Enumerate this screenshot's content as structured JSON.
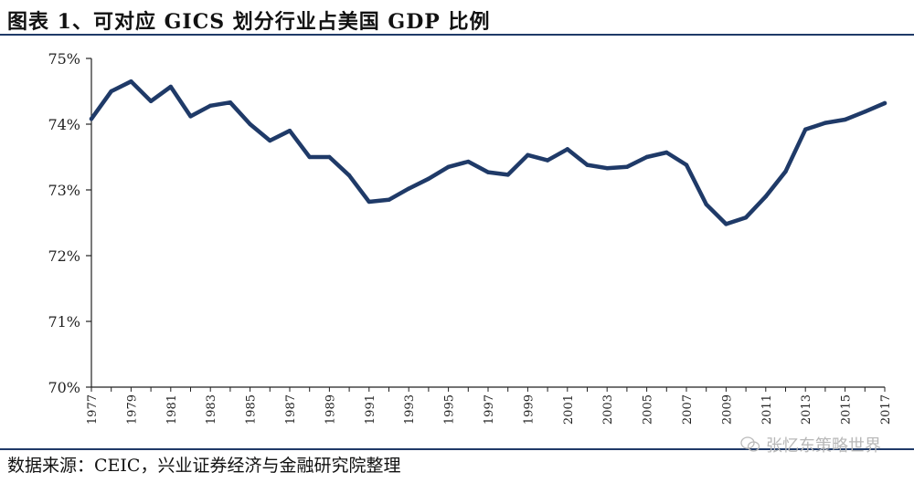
{
  "title": "图表 1、可对应 GICS 划分行业占美国 GDP 比例",
  "source": "数据来源：CEIC，兴业证券经济与金融研究院整理",
  "watermark": "张忆东策略世界",
  "colors": {
    "line": "#1f3a68",
    "rule": "#1f3a68",
    "axis": "#222222"
  },
  "chart_data": {
    "type": "line",
    "title": "",
    "xlabel": "",
    "ylabel": "",
    "ylim": [
      70,
      75
    ],
    "yticks": [
      "70%",
      "71%",
      "72%",
      "73%",
      "74%",
      "75%"
    ],
    "xticks": [
      "1977",
      "1979",
      "1981",
      "1983",
      "1985",
      "1987",
      "1989",
      "1991",
      "1993",
      "1995",
      "1997",
      "1999",
      "2001",
      "2003",
      "2005",
      "2007",
      "2009",
      "2011",
      "2013",
      "2015",
      "2017"
    ],
    "grid": false,
    "x": [
      1977,
      1978,
      1979,
      1980,
      1981,
      1982,
      1983,
      1984,
      1985,
      1986,
      1987,
      1988,
      1989,
      1990,
      1991,
      1992,
      1993,
      1994,
      1995,
      1996,
      1997,
      1998,
      1999,
      2000,
      2001,
      2002,
      2003,
      2004,
      2005,
      2006,
      2007,
      2008,
      2009,
      2010,
      2011,
      2012,
      2013,
      2014,
      2015,
      2016,
      2017
    ],
    "series": [
      {
        "values": [
          74.08,
          74.5,
          74.65,
          74.35,
          74.57,
          74.12,
          74.28,
          74.33,
          74.0,
          73.75,
          73.9,
          73.5,
          73.5,
          73.22,
          72.82,
          72.85,
          73.02,
          73.17,
          73.35,
          73.43,
          73.27,
          73.23,
          73.53,
          73.45,
          73.62,
          73.38,
          73.33,
          73.35,
          73.5,
          73.57,
          73.38,
          72.78,
          72.48,
          72.58,
          72.9,
          73.28,
          73.92,
          74.02,
          74.07,
          74.19,
          74.32
        ]
      }
    ]
  }
}
